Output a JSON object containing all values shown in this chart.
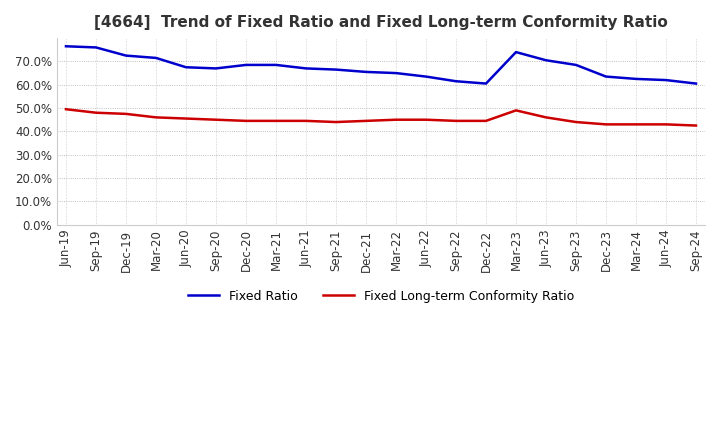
{
  "title": "[4664]  Trend of Fixed Ratio and Fixed Long-term Conformity Ratio",
  "x_labels": [
    "Jun-19",
    "Sep-19",
    "Dec-19",
    "Mar-20",
    "Jun-20",
    "Sep-20",
    "Dec-20",
    "Mar-21",
    "Jun-21",
    "Sep-21",
    "Dec-21",
    "Mar-22",
    "Jun-22",
    "Sep-22",
    "Dec-22",
    "Mar-23",
    "Jun-23",
    "Sep-23",
    "Dec-23",
    "Mar-24",
    "Jun-24",
    "Sep-24"
  ],
  "fixed_ratio": [
    76.5,
    76.0,
    72.5,
    71.5,
    67.5,
    67.0,
    68.5,
    68.5,
    67.0,
    66.5,
    65.5,
    65.0,
    63.5,
    61.5,
    60.5,
    74.0,
    70.5,
    68.5,
    63.5,
    62.5,
    62.0,
    60.5
  ],
  "fixed_lt_ratio": [
    49.5,
    48.0,
    47.5,
    46.0,
    45.5,
    45.0,
    44.5,
    44.5,
    44.5,
    44.0,
    44.5,
    45.0,
    45.0,
    44.5,
    44.5,
    49.0,
    46.0,
    44.0,
    43.0,
    43.0,
    43.0,
    42.5
  ],
  "fixed_ratio_color": "#0000cc",
  "fixed_lt_ratio_color": "#cc0000",
  "ylim": [
    0,
    80
  ],
  "yticks": [
    0.0,
    10.0,
    20.0,
    30.0,
    40.0,
    50.0,
    60.0,
    70.0
  ],
  "background_color": "#ffffff",
  "plot_bg_color": "#ffffff",
  "grid_color": "#aaaaaa",
  "legend_labels": [
    "Fixed Ratio",
    "Fixed Long-term Conformity Ratio"
  ]
}
